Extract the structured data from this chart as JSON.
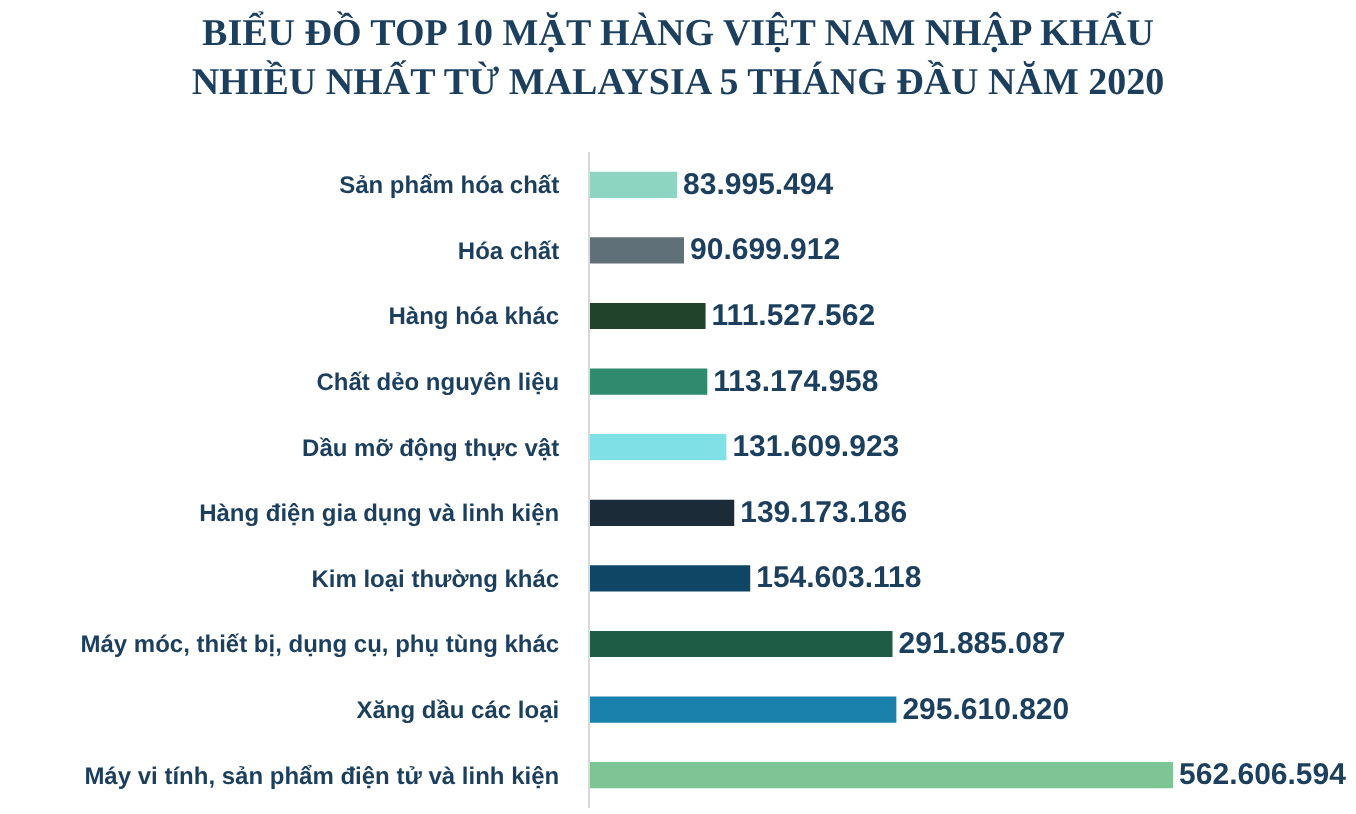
{
  "chart_data": {
    "type": "bar",
    "orientation": "horizontal",
    "tick_labels": "y",
    "title": "BIỂU ĐỒ TOP 10 MẶT HÀNG VIỆT NAM NHẬP KHẨU\nNHIỀU NHẤT TỪ MALAYSIA 5 THÁNG ĐẦU NĂM 2020",
    "categories": [
      "Sản phẩm hóa chất",
      "Hóa chất",
      "Hàng hóa khác",
      "Chất dẻo nguyên liệu",
      "Dầu mỡ động thực vật",
      "Hàng điện gia dụng và linh kiện",
      "Kim loại thường khác",
      "Máy móc, thiết bị, dụng cụ, phụ tùng khác",
      "Xăng dầu các loại",
      "Máy vi tính, sản phẩm điện tử và linh kiện"
    ],
    "values": [
      83995494,
      90699912,
      111527562,
      113174958,
      131609923,
      139173186,
      154603118,
      291885087,
      295610820,
      562606594
    ],
    "value_labels": [
      "83.995.494",
      "90.699.912",
      "111.527.562",
      "113.174.958",
      "131.609.923",
      "139.173.186",
      "154.603.118",
      "291.885.087",
      "295.610.820",
      "562.606.594"
    ],
    "colors": [
      "#8dd5c0",
      "#5f7078",
      "#21432b",
      "#2f8a6e",
      "#7fe0e6",
      "#1b2b38",
      "#0f4565",
      "#1f5c45",
      "#1a80ac",
      "#7dc595"
    ]
  }
}
